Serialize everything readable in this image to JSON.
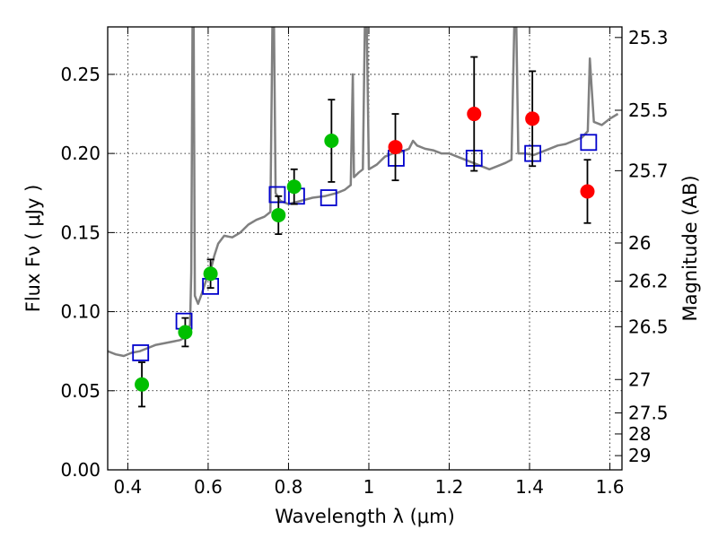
{
  "chart_data": {
    "type": "scatter",
    "xlabel": "Wavelength  λ (μm)",
    "ylabel": "Flux  Fν  ( μJy )",
    "y2label": "Magnitude (AB)",
    "xlim": [
      0.35,
      1.63
    ],
    "ylim": [
      0.0,
      0.28
    ],
    "grid": true,
    "x_ticks": [
      0.4,
      0.6,
      0.8,
      1.0,
      1.2,
      1.4,
      1.6
    ],
    "x_tick_labels": [
      "0.4",
      "0.6",
      "0.8",
      "1",
      "1.2",
      "1.4",
      "1.6"
    ],
    "y_ticks": [
      0.0,
      0.05,
      0.1,
      0.15,
      0.2,
      0.25
    ],
    "y_tick_labels": [
      "0.00",
      "0.05",
      "0.10",
      "0.15",
      "0.20",
      "0.25"
    ],
    "y2_ticks": [
      {
        "label": "25.3",
        "flux": 0.2733
      },
      {
        "label": "25.5",
        "flux": 0.2273
      },
      {
        "label": "25.7",
        "flux": 0.1891
      },
      {
        "label": "26",
        "flux": 0.1434
      },
      {
        "label": "26.2",
        "flux": 0.1193
      },
      {
        "label": "26.5",
        "flux": 0.0905
      },
      {
        "label": "27",
        "flux": 0.0571
      },
      {
        "label": "27.5",
        "flux": 0.036
      },
      {
        "label": "28",
        "flux": 0.0227
      },
      {
        "label": "29",
        "flux": 0.009
      }
    ],
    "series": [
      {
        "marker": "circle",
        "color": "#00bf00",
        "points": [
          {
            "x": 0.435,
            "y": 0.054,
            "yerr": 0.014
          },
          {
            "x": 0.543,
            "y": 0.087,
            "yerr": 0.009
          },
          {
            "x": 0.606,
            "y": 0.124,
            "yerr": 0.009
          },
          {
            "x": 0.775,
            "y": 0.161,
            "yerr": 0.012
          },
          {
            "x": 0.814,
            "y": 0.179,
            "yerr": 0.011
          },
          {
            "x": 0.907,
            "y": 0.208,
            "yerr": 0.026
          }
        ]
      },
      {
        "marker": "circle",
        "color": "#ff0000",
        "points": [
          {
            "x": 1.066,
            "y": 0.204,
            "yerr": 0.021
          },
          {
            "x": 1.262,
            "y": 0.225,
            "yerr": 0.036
          },
          {
            "x": 1.407,
            "y": 0.222,
            "yerr": 0.03
          },
          {
            "x": 1.544,
            "y": 0.176,
            "yerr": 0.02
          }
        ]
      },
      {
        "marker": "open-square",
        "color": "#0000cc",
        "points": [
          {
            "x": 0.432,
            "y": 0.074
          },
          {
            "x": 0.54,
            "y": 0.094
          },
          {
            "x": 0.606,
            "y": 0.116
          },
          {
            "x": 0.772,
            "y": 0.174
          },
          {
            "x": 0.82,
            "y": 0.173
          },
          {
            "x": 0.9,
            "y": 0.172
          },
          {
            "x": 1.068,
            "y": 0.197
          },
          {
            "x": 1.262,
            "y": 0.197
          },
          {
            "x": 1.408,
            "y": 0.2
          },
          {
            "x": 1.547,
            "y": 0.207
          }
        ]
      },
      {
        "marker": "line",
        "color": "#808080",
        "points": [
          [
            0.35,
            0.075
          ],
          [
            0.37,
            0.073
          ],
          [
            0.39,
            0.072
          ],
          [
            0.41,
            0.074
          ],
          [
            0.43,
            0.075
          ],
          [
            0.45,
            0.077
          ],
          [
            0.47,
            0.079
          ],
          [
            0.49,
            0.08
          ],
          [
            0.51,
            0.081
          ],
          [
            0.53,
            0.082
          ],
          [
            0.545,
            0.084
          ],
          [
            0.555,
            0.092
          ],
          [
            0.558,
            0.125
          ],
          [
            0.561,
            0.28
          ],
          [
            0.564,
            0.28
          ],
          [
            0.567,
            0.11
          ],
          [
            0.575,
            0.105
          ],
          [
            0.585,
            0.112
          ],
          [
            0.595,
            0.12
          ],
          [
            0.605,
            0.125
          ],
          [
            0.615,
            0.135
          ],
          [
            0.625,
            0.143
          ],
          [
            0.64,
            0.148
          ],
          [
            0.66,
            0.147
          ],
          [
            0.68,
            0.15
          ],
          [
            0.7,
            0.155
          ],
          [
            0.72,
            0.158
          ],
          [
            0.74,
            0.16
          ],
          [
            0.755,
            0.163
          ],
          [
            0.76,
            0.28
          ],
          [
            0.764,
            0.28
          ],
          [
            0.768,
            0.175
          ],
          [
            0.78,
            0.17
          ],
          [
            0.8,
            0.168
          ],
          [
            0.83,
            0.17
          ],
          [
            0.86,
            0.172
          ],
          [
            0.89,
            0.173
          ],
          [
            0.92,
            0.175
          ],
          [
            0.94,
            0.177
          ],
          [
            0.955,
            0.18
          ],
          [
            0.96,
            0.25
          ],
          [
            0.963,
            0.185
          ],
          [
            0.975,
            0.188
          ],
          [
            0.985,
            0.19
          ],
          [
            0.99,
            0.28
          ],
          [
            0.995,
            0.28
          ],
          [
            1.0,
            0.19
          ],
          [
            1.02,
            0.193
          ],
          [
            1.04,
            0.198
          ],
          [
            1.06,
            0.2
          ],
          [
            1.08,
            0.201
          ],
          [
            1.1,
            0.203
          ],
          [
            1.11,
            0.208
          ],
          [
            1.12,
            0.205
          ],
          [
            1.14,
            0.203
          ],
          [
            1.16,
            0.202
          ],
          [
            1.18,
            0.2
          ],
          [
            1.2,
            0.2
          ],
          [
            1.22,
            0.198
          ],
          [
            1.24,
            0.196
          ],
          [
            1.26,
            0.194
          ],
          [
            1.28,
            0.192
          ],
          [
            1.3,
            0.19
          ],
          [
            1.32,
            0.192
          ],
          [
            1.34,
            0.194
          ],
          [
            1.355,
            0.196
          ],
          [
            1.362,
            0.28
          ],
          [
            1.367,
            0.28
          ],
          [
            1.372,
            0.2
          ],
          [
            1.39,
            0.2
          ],
          [
            1.41,
            0.199
          ],
          [
            1.43,
            0.201
          ],
          [
            1.45,
            0.203
          ],
          [
            1.47,
            0.205
          ],
          [
            1.49,
            0.206
          ],
          [
            1.51,
            0.208
          ],
          [
            1.53,
            0.21
          ],
          [
            1.545,
            0.214
          ],
          [
            1.55,
            0.26
          ],
          [
            1.555,
            0.24
          ],
          [
            1.56,
            0.22
          ],
          [
            1.58,
            0.218
          ],
          [
            1.6,
            0.222
          ],
          [
            1.62,
            0.225
          ]
        ]
      }
    ]
  }
}
